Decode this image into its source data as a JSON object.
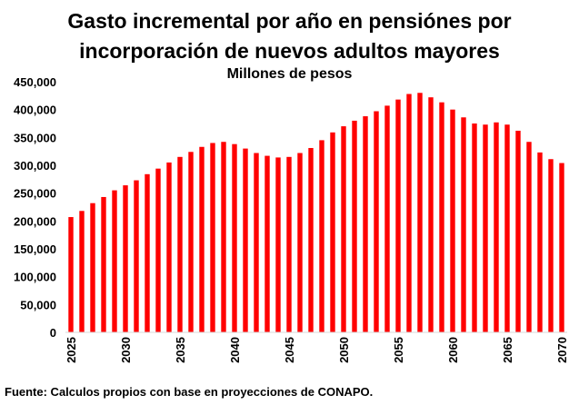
{
  "chart_data": {
    "type": "bar",
    "title_line1": "Gasto incremental por año en pensiónes por",
    "title_line2": "incorporación de nuevos adultos mayores",
    "subtitle": "Millones de pesos",
    "source": "Fuente: Calculos propios con base en proyecciones de CONAPO.",
    "xlabel": "",
    "ylabel": "",
    "ylim": [
      0,
      450000
    ],
    "yticks": [
      "0",
      "50,000",
      "100,000",
      "150,000",
      "200,000",
      "250,000",
      "300,000",
      "350,000",
      "400,000",
      "450,000"
    ],
    "xtick_labels": [
      "2025",
      "2030",
      "2035",
      "2040",
      "2045",
      "2050",
      "2055",
      "2060",
      "2065",
      "2070"
    ],
    "bar_color": "#ff0000",
    "grid": false,
    "legend": "none",
    "categories": [
      2025,
      2026,
      2027,
      2028,
      2029,
      2030,
      2031,
      2032,
      2033,
      2034,
      2035,
      2036,
      2037,
      2038,
      2039,
      2040,
      2041,
      2042,
      2043,
      2044,
      2045,
      2046,
      2047,
      2048,
      2049,
      2050,
      2051,
      2052,
      2053,
      2054,
      2055,
      2056,
      2057,
      2058,
      2059,
      2060,
      2061,
      2062,
      2063,
      2064,
      2065,
      2066,
      2067,
      2068,
      2069,
      2070
    ],
    "values": [
      207000,
      218000,
      232000,
      243000,
      255000,
      264000,
      273000,
      284000,
      294000,
      305000,
      315000,
      324000,
      333000,
      340000,
      342000,
      338000,
      330000,
      322000,
      317000,
      314000,
      315000,
      322000,
      331000,
      345000,
      359000,
      370000,
      380000,
      388000,
      397000,
      407000,
      418000,
      428000,
      430000,
      422000,
      413000,
      400000,
      386000,
      375000,
      373000,
      377000,
      373000,
      362000,
      342000,
      323000,
      311000,
      304000
    ]
  }
}
